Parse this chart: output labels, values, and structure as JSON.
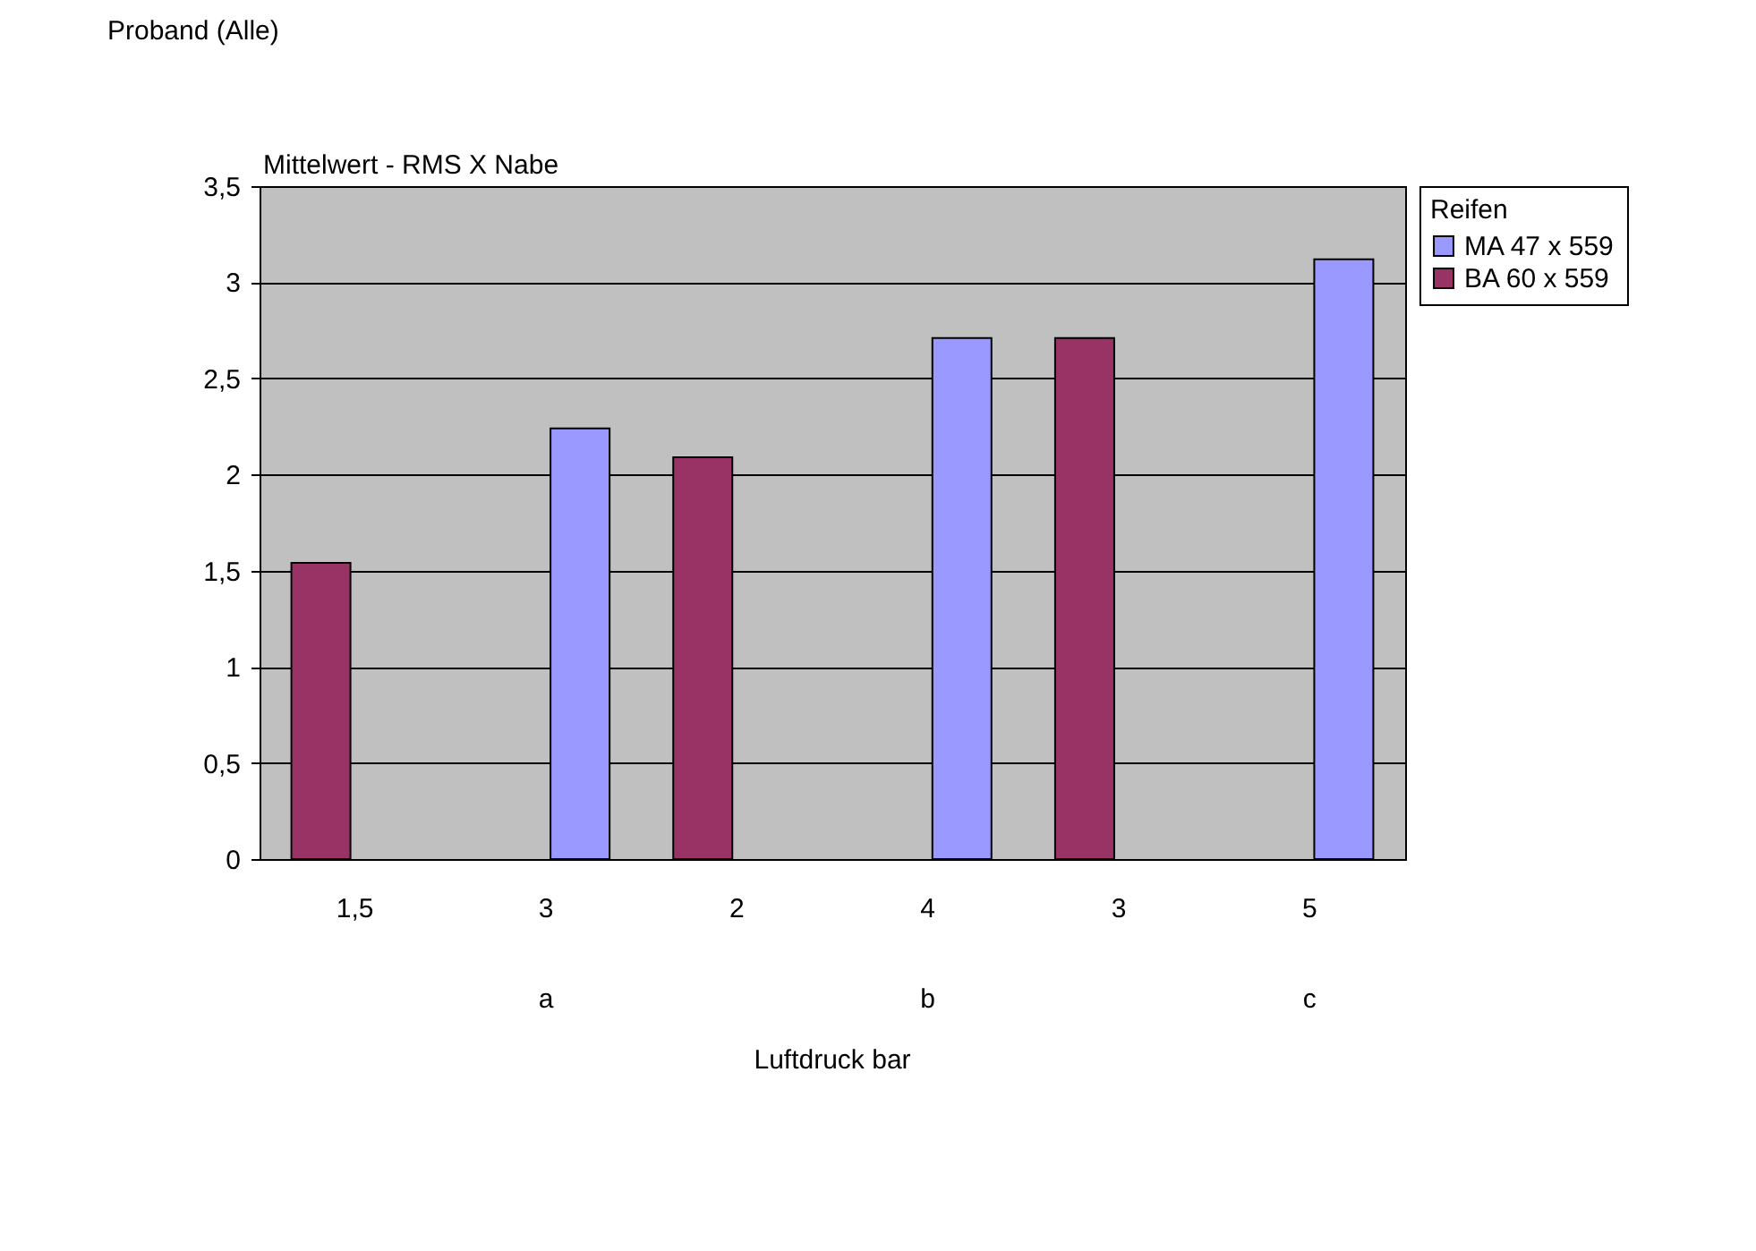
{
  "chart_data": {
    "type": "bar",
    "title": "Proband (Alle)",
    "ylabel": "Mittelwert - RMS X Nabe",
    "xlabel": "Luftdruck bar",
    "legend_title": "Reifen",
    "legend": "right",
    "grid": "y",
    "categories": [
      "1,5",
      "3",
      "2",
      "4",
      "3",
      "5"
    ],
    "annotations": [
      "a",
      "b",
      "c"
    ],
    "series": [
      {
        "name": "MA 47 x 559",
        "color": "#9999ff",
        "values": [
          null,
          2.24,
          null,
          2.71,
          null,
          3.12
        ]
      },
      {
        "name": "BA 60 x 559",
        "color": "#993366",
        "values": [
          1.54,
          null,
          2.09,
          null,
          2.71,
          null
        ]
      }
    ],
    "ylim": [
      0,
      3.5
    ],
    "yticks": [
      0,
      {
        "value": 0.5,
        "label": "0,5"
      },
      1,
      {
        "value": 1.5,
        "label": "1,5"
      },
      2,
      {
        "value": 2.5,
        "label": "2,5"
      },
      3,
      {
        "value": 3.5,
        "label": "3,5"
      }
    ]
  }
}
